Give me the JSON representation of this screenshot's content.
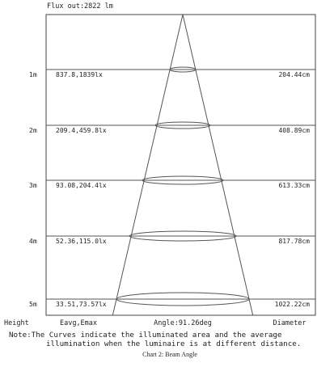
{
  "header": {
    "flux_out": "Flux out:2822 lm"
  },
  "rows": [
    {
      "height": "1m",
      "eavg_emax": "837.8,1839lx",
      "diameter": "204.44cm"
    },
    {
      "height": "2m",
      "eavg_emax": "209.4,459.8lx",
      "diameter": "408.89cm"
    },
    {
      "height": "3m",
      "eavg_emax": "93.08,204.4lx",
      "diameter": "613.33cm"
    },
    {
      "height": "4m",
      "eavg_emax": "52.36,115.0lx",
      "diameter": "817.78cm"
    },
    {
      "height": "5m",
      "eavg_emax": "33.51,73.57lx",
      "diameter": "1022.22cm"
    }
  ],
  "footer_labels": {
    "height": "Height",
    "eavg": "Eavg,Emax",
    "angle": "Angle:91.26deg",
    "diameter": "Diameter"
  },
  "note": {
    "line1": "Note:The Curves indicate the illuminated area and the average",
    "line2": "illumination when the luminaire is at different distance."
  },
  "caption": "Chart 2: Beam Angle",
  "colors": {
    "line": "#555555",
    "text": "#222222"
  }
}
